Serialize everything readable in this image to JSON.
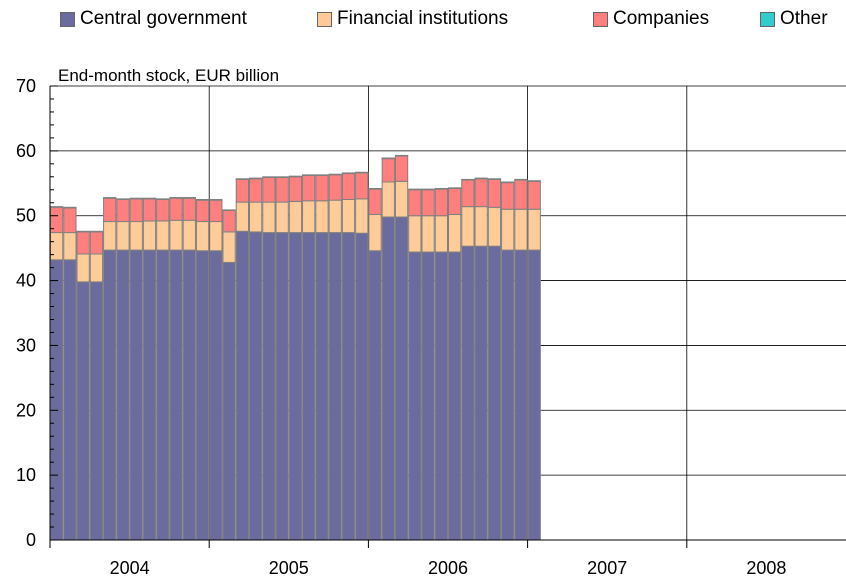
{
  "chart_data": {
    "type": "bar",
    "stacked": true,
    "title": "",
    "subtitle": "End-month stock, EUR billion",
    "xlabel": "",
    "ylabel": "",
    "ylim": [
      0,
      70
    ],
    "yticks": [
      0,
      10,
      20,
      30,
      40,
      50,
      60,
      70
    ],
    "x_tick_labels": [
      "2004",
      "2005",
      "2006",
      "2007",
      "2008"
    ],
    "x_range_months": 60,
    "grid": true,
    "legend_position": "top",
    "series": [
      {
        "name": "Central government",
        "color": "#6b6b9e",
        "values": [
          43.2,
          43.2,
          39.8,
          39.8,
          44.7,
          44.7,
          44.7,
          44.7,
          44.7,
          44.7,
          44.7,
          44.6,
          44.6,
          42.8,
          47.6,
          47.5,
          47.4,
          47.4,
          47.4,
          47.4,
          47.4,
          47.4,
          47.4,
          47.3,
          44.6,
          49.8,
          49.8,
          44.4,
          44.4,
          44.4,
          44.4,
          45.3,
          45.3,
          45.3,
          44.7,
          44.7,
          44.7
        ]
      },
      {
        "name": "Financial institutions",
        "color": "#ffcc99",
        "values": [
          4.2,
          4.2,
          4.3,
          4.3,
          4.4,
          4.4,
          4.4,
          4.5,
          4.5,
          4.6,
          4.6,
          4.5,
          4.5,
          4.7,
          4.5,
          4.6,
          4.7,
          4.7,
          4.8,
          4.9,
          4.9,
          5.0,
          5.1,
          5.3,
          5.6,
          5.4,
          5.5,
          5.6,
          5.6,
          5.6,
          5.8,
          6.1,
          6.1,
          6.0,
          6.3,
          6.3,
          6.3
        ]
      },
      {
        "name": "Companies",
        "color": "#ff7f7f",
        "values": [
          3.9,
          3.8,
          3.4,
          3.4,
          3.6,
          3.4,
          3.5,
          3.4,
          3.3,
          3.4,
          3.4,
          3.3,
          3.3,
          3.3,
          3.5,
          3.6,
          3.8,
          3.8,
          3.8,
          3.9,
          3.9,
          3.9,
          4.0,
          4.0,
          3.9,
          3.6,
          3.9,
          4.0,
          4.0,
          4.1,
          4.0,
          4.1,
          4.3,
          4.3,
          4.1,
          4.5,
          4.3
        ]
      },
      {
        "name": "Other",
        "color": "#33cccc",
        "values": [
          0.1,
          0.1,
          0.1,
          0.1,
          0.1,
          0.1,
          0.1,
          0.1,
          0.1,
          0.1,
          0.1,
          0.1,
          0.1,
          0.1,
          0.1,
          0.1,
          0.1,
          0.1,
          0.1,
          0.1,
          0.1,
          0.1,
          0.1,
          0.1,
          0.1,
          0.1,
          0.1,
          0.1,
          0.1,
          0.1,
          0.1,
          0.1,
          0.1,
          0.1,
          0.1,
          0.1,
          0.1
        ]
      }
    ]
  }
}
